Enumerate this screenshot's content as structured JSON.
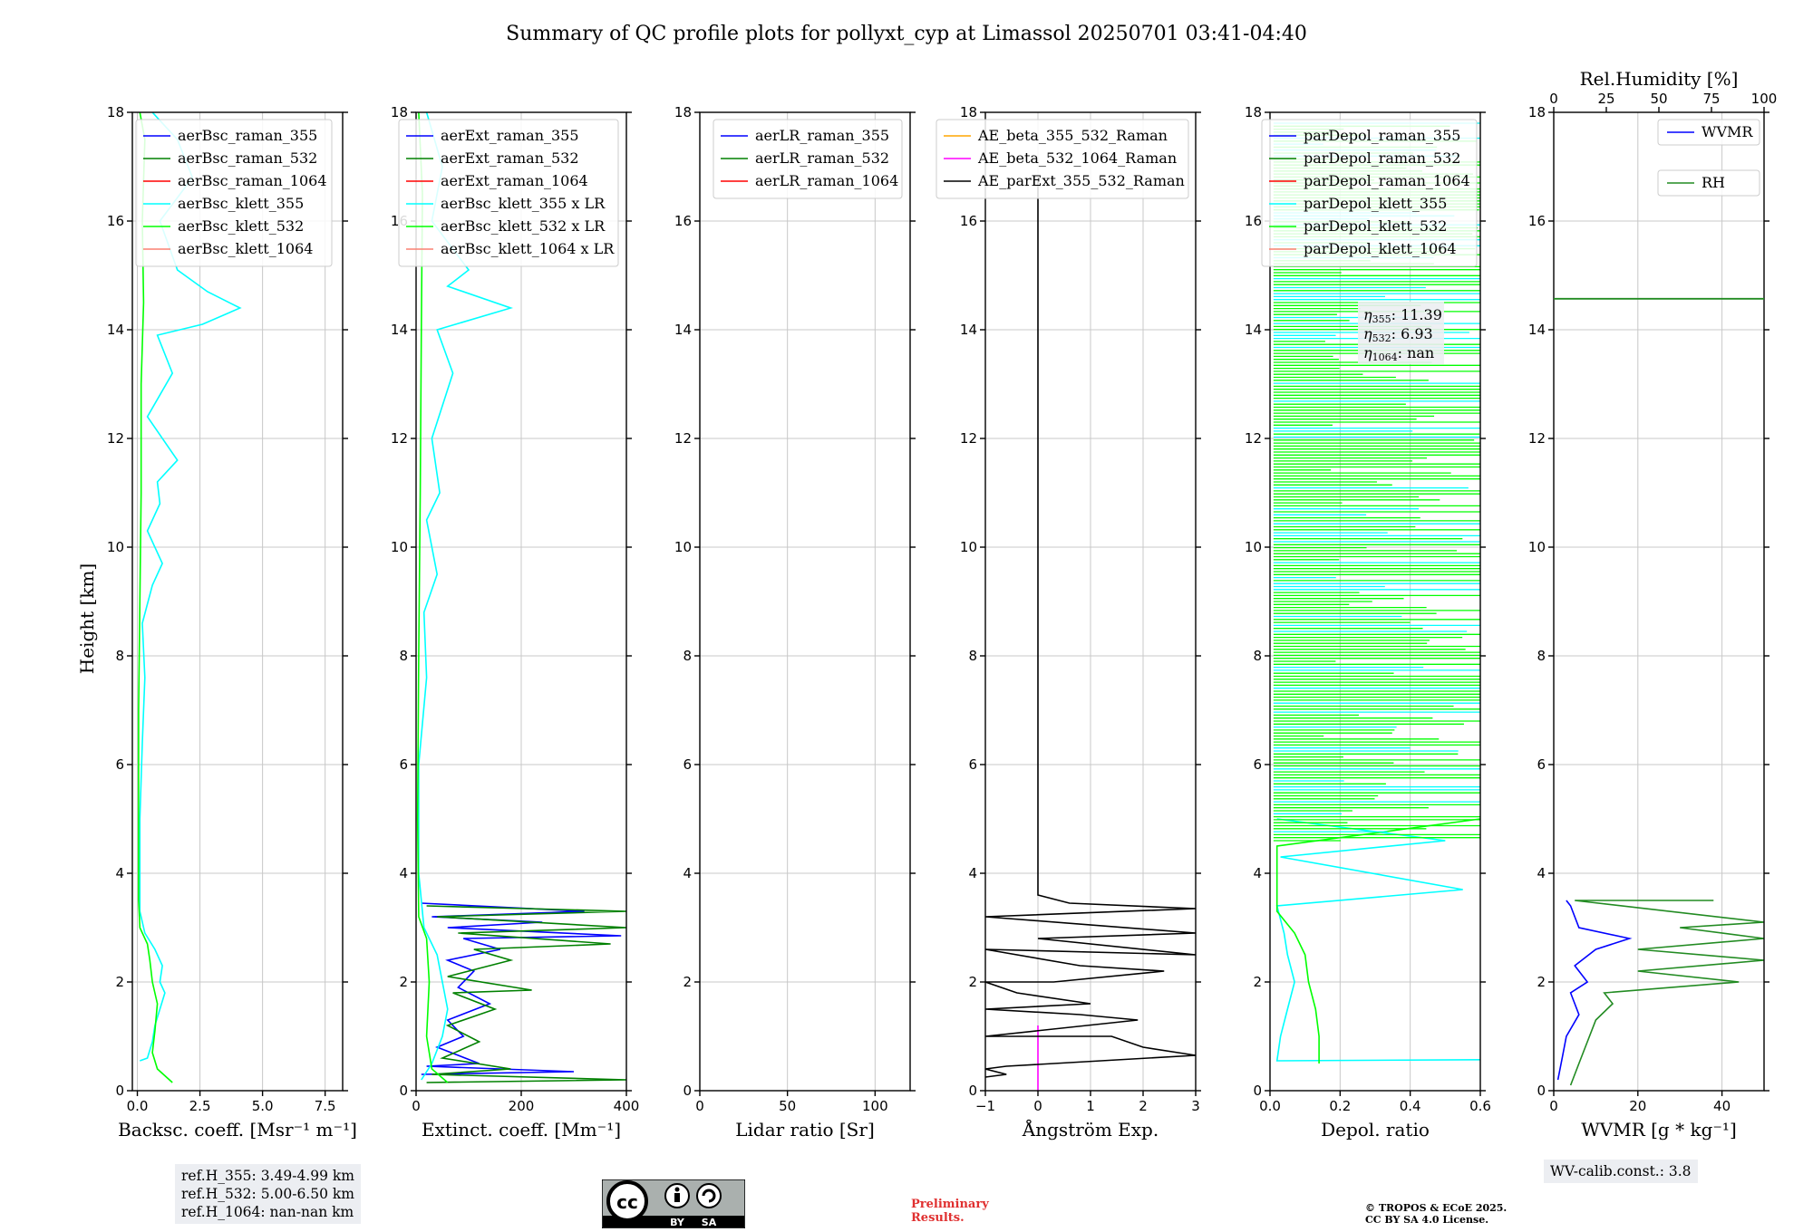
{
  "title": "Summary of QC profile plots for pollyxt_cyp at Limassol 20250701 03:41-04:40",
  "ylabel": "Height [km]",
  "colors": {
    "blue": "#0000ff",
    "green": "#008000",
    "red": "#ff0000",
    "cyan": "#00ffff",
    "lime": "#00ff00",
    "salmon": "#fa8072",
    "orange": "#ffa500",
    "magenta": "#ff00ff",
    "black": "#000000",
    "darkgreen": "#228b22"
  },
  "panels": [
    {
      "xlabel": "Backsc. coeff. [Msr⁻¹ m⁻¹]",
      "legend": [
        "aerBsc_raman_355",
        "aerBsc_raman_532",
        "aerBsc_raman_1064",
        "aerBsc_klett_355",
        "aerBsc_klett_532",
        "aerBsc_klett_1064"
      ]
    },
    {
      "xlabel": "Extinct. coeff. [Mm⁻¹]",
      "legend": [
        "aerExt_raman_355",
        "aerExt_raman_532",
        "aerExt_raman_1064",
        "aerBsc_klett_355 x LR",
        "aerBsc_klett_532 x LR",
        "aerBsc_klett_1064 x LR"
      ]
    },
    {
      "xlabel": "Lidar ratio [Sr]",
      "legend": [
        "aerLR_raman_355",
        "aerLR_raman_532",
        "aerLR_raman_1064"
      ]
    },
    {
      "xlabel": "Ångström Exp.",
      "legend": [
        "AE_beta_355_532_Raman",
        "AE_beta_532_1064_Raman",
        "AE_parExt_355_532_Raman"
      ]
    },
    {
      "xlabel": "Depol. ratio",
      "legend": [
        "parDepol_raman_355",
        "parDepol_raman_532",
        "parDepol_raman_1064",
        "parDepol_klett_355",
        "parDepol_klett_532",
        "parDepol_klett_1064"
      ]
    },
    {
      "xlabel": "WVMR [g * kg⁻¹]",
      "top_label": "Rel.Humidity [%]",
      "legend": [
        "WVMR",
        "RH"
      ]
    }
  ],
  "ref_heights": [
    "ref.H_355: 3.49-4.99 km",
    "ref.H_532: 5.00-6.50 km",
    "ref.H_1064: nan-nan km"
  ],
  "eta": [
    "11.39",
    "6.93",
    "nan"
  ],
  "wv_calib": "WV-calib.const.: 3.8",
  "preliminary": [
    "Preliminary",
    "Results."
  ],
  "copyright": [
    "© TROPOS & ECoE 2025.",
    "CC BY SA 4.0 License."
  ],
  "cc_badge": {
    "main": "cc",
    "by": "BY",
    "sa": "SA"
  },
  "chart_data": [
    {
      "type": "line",
      "name": "backscatter",
      "ylim": [
        0,
        18
      ],
      "xlim": [
        -0.2,
        8.2
      ],
      "xticks": [
        0,
        2.5,
        5.0,
        7.5
      ],
      "xtick_labels": [
        "0.0",
        "2.5",
        "5.0",
        "7.5"
      ],
      "yticks": [
        0,
        2,
        4,
        6,
        8,
        10,
        12,
        14,
        16,
        18
      ],
      "grid": true,
      "series": [
        {
          "name": "aerBsc_klett_355",
          "color": "cyan",
          "points": [
            [
              0.1,
              0.55
            ],
            [
              0.4,
              0.6
            ],
            [
              0.6,
              0.9
            ],
            [
              0.7,
              1.2
            ],
            [
              0.9,
              1.5
            ],
            [
              1.1,
              1.8
            ],
            [
              0.9,
              2.0
            ],
            [
              1.0,
              2.3
            ],
            [
              0.7,
              2.6
            ],
            [
              0.3,
              2.9
            ],
            [
              0.1,
              3.3
            ],
            [
              0.1,
              4.0
            ],
            [
              0.1,
              5.0
            ],
            [
              0.2,
              6.4
            ],
            [
              0.3,
              7.6
            ],
            [
              0.2,
              8.6
            ],
            [
              0.6,
              9.3
            ],
            [
              1.0,
              9.7
            ],
            [
              0.4,
              10.3
            ],
            [
              0.9,
              10.8
            ],
            [
              0.8,
              11.2
            ],
            [
              1.6,
              11.6
            ],
            [
              0.4,
              12.4
            ],
            [
              1.4,
              13.2
            ],
            [
              0.8,
              13.9
            ],
            [
              2.6,
              14.1
            ],
            [
              4.1,
              14.4
            ],
            [
              2.8,
              14.7
            ],
            [
              1.6,
              15.1
            ],
            [
              0.9,
              16.0
            ],
            [
              2.2,
              16.8
            ],
            [
              1.6,
              17.5
            ],
            [
              0.6,
              18.0
            ]
          ]
        },
        {
          "name": "aerBsc_klett_532",
          "color": "lime",
          "points": [
            [
              1.4,
              0.15
            ],
            [
              0.8,
              0.4
            ],
            [
              0.6,
              0.7
            ],
            [
              0.7,
              1.1
            ],
            [
              0.8,
              1.6
            ],
            [
              0.6,
              2.0
            ],
            [
              0.5,
              2.4
            ],
            [
              0.4,
              2.7
            ],
            [
              0.1,
              3.0
            ],
            [
              0.05,
              3.5
            ],
            [
              0.05,
              5.0
            ],
            [
              0.05,
              7.0
            ],
            [
              0.1,
              9.0
            ],
            [
              0.15,
              11.0
            ],
            [
              0.15,
              13.0
            ],
            [
              0.25,
              14.5
            ],
            [
              0.2,
              16.0
            ],
            [
              0.3,
              17.5
            ],
            [
              0.1,
              18.0
            ]
          ]
        }
      ]
    },
    {
      "type": "line",
      "name": "extinction",
      "ylim": [
        0,
        18
      ],
      "xlim": [
        0,
        400
      ],
      "xticks": [
        0,
        200,
        400
      ],
      "xtick_labels": [
        "0",
        "200",
        "400"
      ],
      "yticks": [
        0,
        2,
        4,
        6,
        8,
        10,
        12,
        14,
        16,
        18
      ],
      "grid": true,
      "series": [
        {
          "name": "aerExt_raman_355",
          "color": "blue",
          "points": [
            [
              10,
              0.3
            ],
            [
              300,
              0.35
            ],
            [
              20,
              0.45
            ],
            [
              120,
              0.5
            ],
            [
              40,
              0.8
            ],
            [
              90,
              1.0
            ],
            [
              60,
              1.3
            ],
            [
              140,
              1.6
            ],
            [
              80,
              1.9
            ],
            [
              110,
              2.2
            ],
            [
              60,
              2.4
            ],
            [
              160,
              2.6
            ],
            [
              90,
              2.8
            ],
            [
              390,
              2.85
            ],
            [
              60,
              3.0
            ],
            [
              240,
              3.1
            ],
            [
              30,
              3.2
            ],
            [
              320,
              3.3
            ],
            [
              10,
              3.45
            ]
          ]
        },
        {
          "name": "aerExt_raman_532",
          "color": "green",
          "points": [
            [
              20,
              0.15
            ],
            [
              400,
              0.2
            ],
            [
              30,
              0.3
            ],
            [
              180,
              0.4
            ],
            [
              50,
              0.6
            ],
            [
              120,
              0.9
            ],
            [
              60,
              1.2
            ],
            [
              150,
              1.5
            ],
            [
              70,
              1.8
            ],
            [
              220,
              1.85
            ],
            [
              60,
              2.1
            ],
            [
              180,
              2.4
            ],
            [
              110,
              2.6
            ],
            [
              370,
              2.7
            ],
            [
              80,
              2.9
            ],
            [
              400,
              3.0
            ],
            [
              40,
              3.2
            ],
            [
              400,
              3.3
            ],
            [
              20,
              3.4
            ]
          ]
        },
        {
          "name": "aerBsc_klett_355 x LR",
          "color": "cyan",
          "points": [
            [
              10,
              0.2
            ],
            [
              30,
              0.5
            ],
            [
              50,
              1.0
            ],
            [
              60,
              1.5
            ],
            [
              50,
              2.0
            ],
            [
              40,
              2.5
            ],
            [
              15,
              3.0
            ],
            [
              5,
              4.0
            ],
            [
              5,
              6.0
            ],
            [
              20,
              7.6
            ],
            [
              15,
              8.8
            ],
            [
              40,
              9.5
            ],
            [
              20,
              10.5
            ],
            [
              45,
              11.0
            ],
            [
              30,
              12.0
            ],
            [
              70,
              13.2
            ],
            [
              40,
              14.0
            ],
            [
              180,
              14.4
            ],
            [
              60,
              14.8
            ],
            [
              100,
              15.1
            ],
            [
              30,
              16.0
            ],
            [
              50,
              17.0
            ],
            [
              20,
              18.0
            ]
          ]
        },
        {
          "name": "aerBsc_klett_532 x LR",
          "color": "lime",
          "points": [
            [
              60,
              0.15
            ],
            [
              30,
              0.4
            ],
            [
              20,
              1.0
            ],
            [
              25,
              2.0
            ],
            [
              20,
              2.8
            ],
            [
              5,
              3.2
            ],
            [
              3,
              5.0
            ],
            [
              5,
              8.0
            ],
            [
              8,
              11.0
            ],
            [
              10,
              14.0
            ],
            [
              12,
              16.5
            ],
            [
              5,
              18.0
            ]
          ]
        }
      ]
    },
    {
      "type": "line",
      "name": "lidar_ratio",
      "ylim": [
        0,
        18
      ],
      "xlim": [
        0,
        120
      ],
      "xticks": [
        0,
        50,
        100
      ],
      "xtick_labels": [
        "0",
        "50",
        "100"
      ],
      "yticks": [
        0,
        2,
        4,
        6,
        8,
        10,
        12,
        14,
        16,
        18
      ],
      "grid": true,
      "series": []
    },
    {
      "type": "line",
      "name": "angstrom",
      "ylim": [
        0,
        18
      ],
      "xlim": [
        -1,
        3
      ],
      "xticks": [
        -1,
        0,
        1,
        2,
        3
      ],
      "xtick_labels": [
        "−1",
        "0",
        "1",
        "2",
        "3"
      ],
      "yticks": [
        0,
        2,
        4,
        6,
        8,
        10,
        12,
        14,
        16,
        18
      ],
      "grid": true,
      "series": [
        {
          "name": "AE_beta_532_1064_Raman",
          "color": "magenta",
          "points": [
            [
              0,
              0
            ],
            [
              0,
              1.2
            ]
          ]
        },
        {
          "name": "AE_parExt_355_532_Raman",
          "color": "black",
          "points": [
            [
              -1,
              0.25
            ],
            [
              -0.6,
              0.3
            ],
            [
              -1,
              0.4
            ],
            [
              -0.6,
              0.45
            ],
            [
              1.2,
              0.55
            ],
            [
              3,
              0.65
            ],
            [
              2.0,
              0.8
            ],
            [
              1.4,
              1.0
            ],
            [
              -1,
              1.0
            ],
            [
              1.9,
              1.3
            ],
            [
              0.8,
              1.4
            ],
            [
              -1,
              1.5
            ],
            [
              1.0,
              1.6
            ],
            [
              -0.4,
              1.8
            ],
            [
              -1,
              2.0
            ],
            [
              0.3,
              2.0
            ],
            [
              2.4,
              2.2
            ],
            [
              0.8,
              2.3
            ],
            [
              -1,
              2.6
            ],
            [
              3,
              2.5
            ],
            [
              0,
              2.8
            ],
            [
              3,
              2.9
            ],
            [
              -1,
              3.2
            ],
            [
              3,
              3.35
            ],
            [
              0.6,
              3.45
            ],
            [
              0,
              3.6
            ],
            [
              0,
              16.8
            ]
          ]
        }
      ]
    },
    {
      "type": "line",
      "name": "depolarization",
      "ylim": [
        0,
        18
      ],
      "xlim": [
        0,
        0.6
      ],
      "xticks": [
        0,
        0.2,
        0.4,
        0.6
      ],
      "xtick_labels": [
        "0.0",
        "0.2",
        "0.4",
        "0.6"
      ],
      "yticks": [
        0,
        2,
        4,
        6,
        8,
        10,
        12,
        14,
        16,
        18
      ],
      "grid": true,
      "series": [
        {
          "name": "parDepol_klett_355",
          "color": "cyan",
          "points": [
            [
              0.6,
              0.57
            ],
            [
              0.02,
              0.55
            ],
            [
              0.03,
              1.0
            ],
            [
              0.05,
              1.5
            ],
            [
              0.07,
              2.0
            ],
            [
              0.05,
              2.5
            ],
            [
              0.04,
              2.9
            ],
            [
              0.02,
              3.4
            ],
            [
              0.55,
              3.7
            ],
            [
              0.03,
              4.3
            ],
            [
              0.5,
              4.6
            ],
            [
              0.02,
              5.0
            ]
          ]
        },
        {
          "name": "parDepol_klett_532",
          "color": "lime",
          "points": [
            [
              0.14,
              0.5
            ],
            [
              0.14,
              1.0
            ],
            [
              0.13,
              1.5
            ],
            [
              0.11,
              2.0
            ],
            [
              0.1,
              2.5
            ],
            [
              0.07,
              2.9
            ],
            [
              0.02,
              3.3
            ],
            [
              0.02,
              4.5
            ],
            [
              0.6,
              5.0
            ]
          ]
        }
      ]
    },
    {
      "type": "line",
      "name": "water_vapor",
      "ylim": [
        0,
        18
      ],
      "xlim": [
        0,
        50
      ],
      "xticks": [
        0,
        20,
        40
      ],
      "xtick_labels": [
        "0",
        "20",
        "40"
      ],
      "top_xlim": [
        0,
        100
      ],
      "top_xticks": [
        0,
        25,
        50,
        75,
        100
      ],
      "yticks": [
        0,
        2,
        4,
        6,
        8,
        10,
        12,
        14,
        16,
        18
      ],
      "grid": true,
      "series": [
        {
          "name": "WVMR",
          "color": "blue",
          "points": [
            [
              1,
              0.2
            ],
            [
              2,
              0.6
            ],
            [
              3,
              1.0
            ],
            [
              6,
              1.4
            ],
            [
              4,
              1.8
            ],
            [
              8,
              2.0
            ],
            [
              5,
              2.3
            ],
            [
              10,
              2.6
            ],
            [
              18,
              2.8
            ],
            [
              6,
              3.0
            ],
            [
              4,
              3.4
            ],
            [
              3,
              3.5
            ]
          ]
        },
        {
          "name": "RH",
          "color": "darkgreen",
          "points": [
            [
              4,
              0.1
            ],
            [
              6,
              0.5
            ],
            [
              8,
              0.9
            ],
            [
              10,
              1.3
            ],
            [
              14,
              1.6
            ],
            [
              12,
              1.8
            ],
            [
              44,
              2.0
            ],
            [
              20,
              2.2
            ],
            [
              50,
              2.4
            ],
            [
              20,
              2.6
            ],
            [
              50,
              2.8
            ],
            [
              30,
              3.0
            ],
            [
              50,
              3.1
            ],
            [
              5,
              3.5
            ],
            [
              38,
              3.5
            ]
          ]
        }
      ]
    }
  ]
}
